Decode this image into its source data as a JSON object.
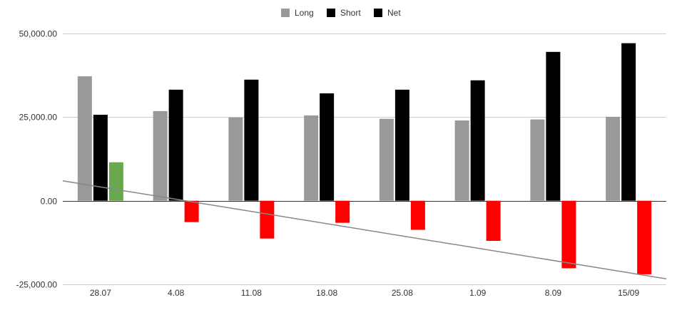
{
  "chart_data": {
    "type": "bar",
    "title": "",
    "xlabel": "",
    "ylabel": "",
    "categories": [
      "28.07",
      "4.08",
      "11.08",
      "18.08",
      "25.08",
      "1.09",
      "8.09",
      "15/09"
    ],
    "series": [
      {
        "name": "Long",
        "color": "#999999",
        "values": [
          37200,
          26800,
          24900,
          25500,
          24500,
          24000,
          24300,
          25100
        ]
      },
      {
        "name": "Short",
        "color": "#000000",
        "values": [
          25700,
          33200,
          36200,
          32100,
          33200,
          36000,
          44500,
          47100
        ]
      },
      {
        "name": "Net",
        "color": "#000000",
        "values": [
          11500,
          -6400,
          -11300,
          -6600,
          -8700,
          -12000,
          -20200,
          -22000
        ]
      }
    ],
    "net_colors": {
      "positive": "#6aa84f",
      "negative": "#ff0000"
    },
    "trendline": {
      "series": "Net",
      "type": "linear",
      "color": "#888888"
    },
    "yticks": [
      50000,
      25000,
      0,
      -25000
    ],
    "ytick_labels": [
      "50,000.00",
      "25,000.00",
      "0.00",
      "-25,000.00"
    ],
    "ylim": [
      -25000,
      50000
    ],
    "grid": true,
    "legend": "top-center"
  }
}
